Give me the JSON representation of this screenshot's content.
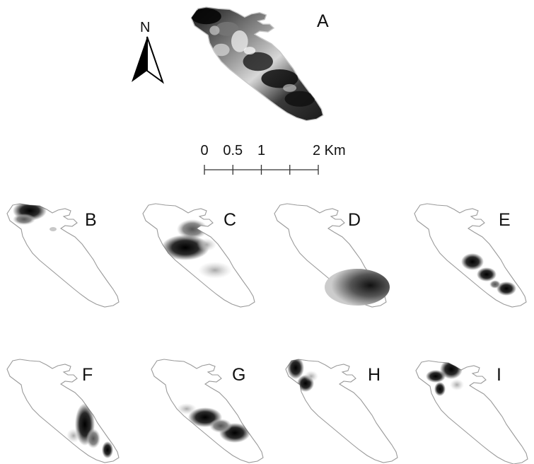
{
  "north_arrow": {
    "label": "N",
    "icon": "north-arrow-icon"
  },
  "scale_bar": {
    "ticks": [
      {
        "label": "0",
        "value": 0
      },
      {
        "label": "0.5",
        "value": 0.5
      },
      {
        "label": "1",
        "value": 1
      },
      {
        "label": "",
        "value": 1.5
      },
      {
        "label": "2 Km",
        "value": 2
      }
    ]
  },
  "panels": [
    {
      "letter": "A"
    },
    {
      "letter": "B"
    },
    {
      "letter": "C"
    },
    {
      "letter": "D"
    },
    {
      "letter": "E"
    },
    {
      "letter": "F"
    },
    {
      "letter": "G"
    },
    {
      "letter": "H"
    },
    {
      "letter": "I"
    }
  ],
  "colors": {
    "outline": "#9a9a9a",
    "density_high": "#000000",
    "density_low": "#cfcfcf"
  }
}
